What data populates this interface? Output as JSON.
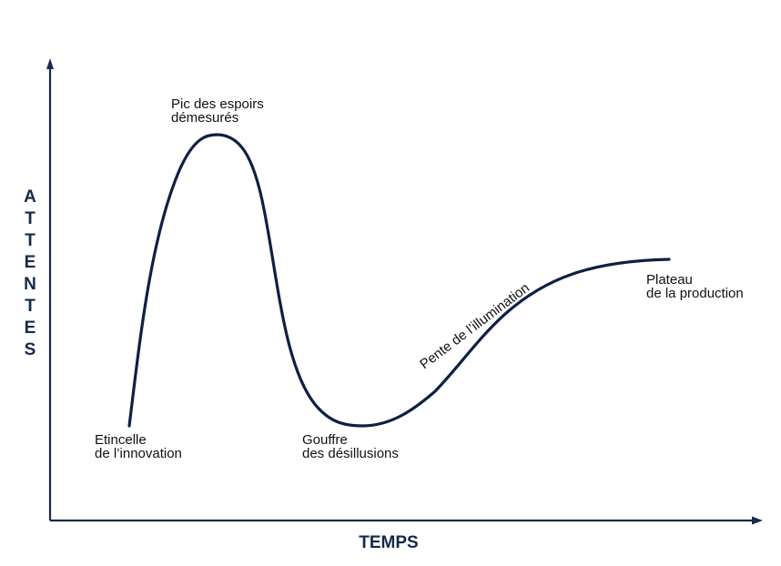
{
  "colors": {
    "axis": "#1a2a4a",
    "curve": "#0f1f45",
    "text": "#111111",
    "axis_title": "#15294a",
    "background": "#ffffff"
  },
  "axes": {
    "y_label_letters": [
      "A",
      "T",
      "T",
      "E",
      "N",
      "T",
      "E",
      "S"
    ],
    "x_label": "TEMPS"
  },
  "phases": {
    "innovation": {
      "line1": "Etincelle",
      "line2": "de l’innovation"
    },
    "peak": {
      "line1": "Pic des espoirs",
      "line2": "démesurés"
    },
    "trough": {
      "line1": "Gouffre",
      "line2": "des désillusions"
    },
    "slope": {
      "line1": "Pente de l’illumination"
    },
    "plateau": {
      "line1": "Plateau",
      "line2": "de la production"
    }
  }
}
